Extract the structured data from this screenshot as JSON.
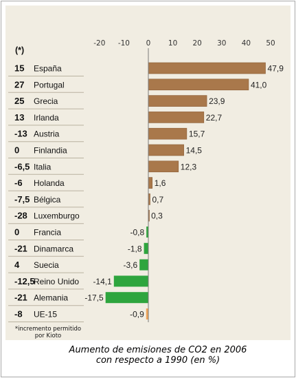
{
  "chart_data": {
    "type": "bar",
    "orientation": "horizontal",
    "title": "Aumento de emisiones de CO2 en 2006 con respecto a 1990 (en %)",
    "title_lines": [
      "Aumento de emisiones de CO2 en 2006",
      "con respecto a 1990 (en %)"
    ],
    "column_header": "(*)",
    "footnote_lines": [
      "*incremento permitido",
      "por Kioto"
    ],
    "xlim": [
      -26,
      50
    ],
    "xticks": [
      -20,
      -10,
      0,
      10,
      20,
      30,
      40,
      50
    ],
    "grid": false,
    "categories": [
      "España",
      "Portugal",
      "Grecia",
      "Irlanda",
      "Austria",
      "Finlandia",
      "Italia",
      "Holanda",
      "Bélgica",
      "Luxemburgo",
      "Francia",
      "Dinamarca",
      "Suecia",
      "Reino Unido",
      "Alemania",
      "UE-15"
    ],
    "values": [
      47.9,
      41.0,
      23.9,
      22.7,
      15.7,
      14.5,
      12.3,
      1.6,
      0.7,
      0.3,
      -0.8,
      -1.8,
      -3.6,
      -14.1,
      -17.5,
      -0.9
    ],
    "value_labels": [
      "47,9",
      "41,0",
      "23,9",
      "22,7",
      "15,7",
      "14,5",
      "12,3",
      "1,6",
      "0,7",
      "0,3",
      "-0,8",
      "-1,8",
      "-3,6",
      "-14,1",
      "-17,5",
      "-0,9"
    ],
    "kyoto_allowed": [
      "15",
      "27",
      "25",
      "13",
      "-13",
      "0",
      "-6,5",
      "-6",
      "-7,5",
      "-28",
      "0",
      "-21",
      "4",
      "-12,5",
      "-21",
      "-8"
    ],
    "colors": {
      "positive": "#a9784b",
      "negative": "#2ea53e",
      "eu15": "#f0a55a",
      "bar_border_positive": "#8a5d35"
    }
  }
}
